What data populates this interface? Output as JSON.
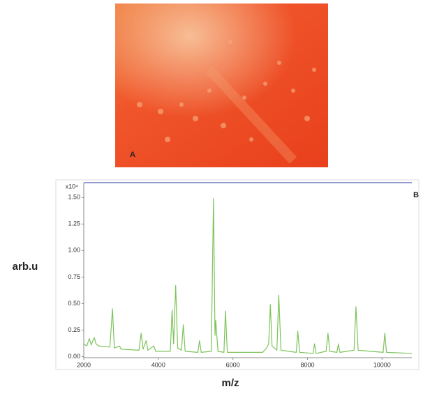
{
  "panel_a": {
    "label": "A"
  },
  "chart_data": {
    "type": "line",
    "label": "B",
    "x_label": "m/z",
    "y_label": "arb.u",
    "y_scale_label": "x10⁴",
    "x": [
      2000,
      2080,
      2150,
      2200,
      2280,
      2330,
      2400,
      2700,
      2770,
      2820,
      2960,
      3000,
      3480,
      3540,
      3590,
      3675,
      3720,
      3880,
      3930,
      4320,
      4370,
      4410,
      4465,
      4520,
      4620,
      4670,
      4720,
      5060,
      5105,
      5150,
      5420,
      5480,
      5520,
      5540,
      5600,
      5760,
      5800,
      5850,
      6800,
      6900,
      6960,
      7005,
      7050,
      7180,
      7230,
      7290,
      7700,
      7740,
      7790,
      8150,
      8190,
      8230,
      8500,
      8550,
      8600,
      8790,
      8830,
      8870,
      9250,
      9300,
      9360,
      10030,
      10075,
      10120,
      10800
    ],
    "series": [
      {
        "color": "#7dc35a",
        "values": [
          0.12,
          0.1,
          0.17,
          0.11,
          0.18,
          0.12,
          0.1,
          0.09,
          0.45,
          0.08,
          0.1,
          0.07,
          0.06,
          0.22,
          0.07,
          0.15,
          0.06,
          0.1,
          0.05,
          0.05,
          0.44,
          0.12,
          0.67,
          0.08,
          0.06,
          0.3,
          0.05,
          0.04,
          0.15,
          0.04,
          0.05,
          1.49,
          0.2,
          0.34,
          0.05,
          0.04,
          0.43,
          0.04,
          0.04,
          0.08,
          0.12,
          0.49,
          0.1,
          0.06,
          0.58,
          0.06,
          0.04,
          0.24,
          0.04,
          0.03,
          0.12,
          0.03,
          0.05,
          0.22,
          0.05,
          0.04,
          0.12,
          0.04,
          0.06,
          0.47,
          0.06,
          0.04,
          0.22,
          0.04,
          0.03
        ]
      }
    ],
    "xlim": [
      2000,
      10800
    ],
    "xticks": [
      2000,
      4000,
      6000,
      8000,
      10000
    ],
    "ylim": [
      -0.01,
      1.64
    ],
    "yticks": [
      {
        "value": 0,
        "label": "0.00"
      },
      {
        "value": 0.25,
        "label": "0.25"
      },
      {
        "value": 0.5,
        "label": "0.50"
      },
      {
        "value": 0.75,
        "label": "0.75"
      },
      {
        "value": 1,
        "label": "1.00"
      },
      {
        "value": 1.25,
        "label": "1.25"
      },
      {
        "value": 1.5,
        "label": "1.50"
      }
    ]
  }
}
